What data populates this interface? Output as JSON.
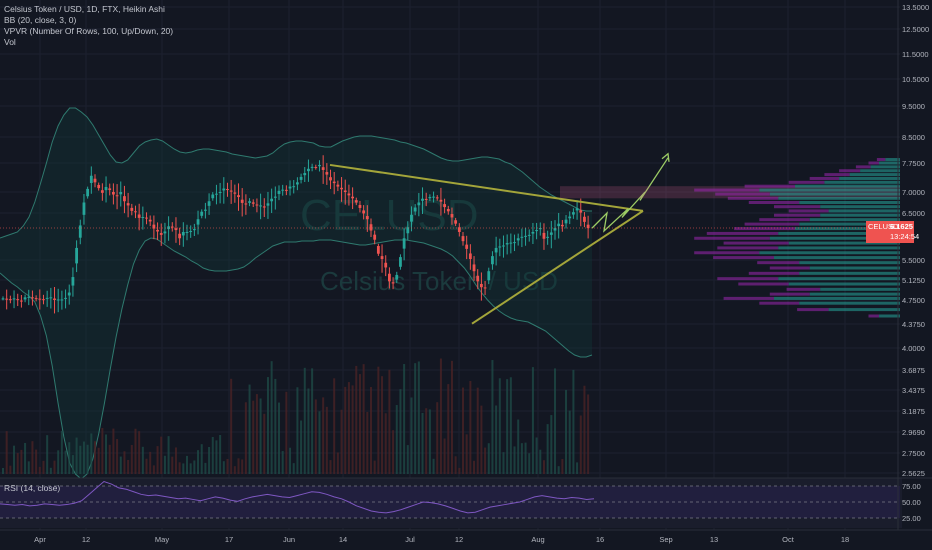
{
  "legend": {
    "symbol_line": "Celsius Token / USD, 1D, FTX, Heikin Ashi",
    "bb": "BB (20, close, 3, 0)",
    "vpvr": "VPVR (Number Of Rows, 100, Up/Down, 20)",
    "vol": "Vol"
  },
  "rsi_label": "RSI (14, close)",
  "watermark": {
    "symbol": "CELUSD",
    "name": "Celsius Token / USD"
  },
  "price_axis": [
    "13.5000",
    "12.5000",
    "11.5000",
    "10.5000",
    "9.5000",
    "8.5000",
    "7.7500",
    "7.0000",
    "6.5000",
    "5.5000",
    "5.1250",
    "4.7500",
    "4.3750",
    "4.0000",
    "3.6875",
    "3.4375",
    "3.1875",
    "2.9690",
    "2.7500",
    "2.5625"
  ],
  "rsi_axis": [
    "75.00",
    "50.00",
    "25.00"
  ],
  "time_axis": [
    "Apr",
    "12",
    "May",
    "17",
    "Jun",
    "14",
    "Jul",
    "12",
    "Aug",
    "16",
    "Sep",
    "13",
    "Oct",
    "18"
  ],
  "current_price": {
    "symbol": "CELUSD",
    "price": "6.1625",
    "countdown": "13:24:54"
  },
  "colors": {
    "up": "#26a69a",
    "down": "#ef5350",
    "background": "#131722",
    "bb": "#2f7a6f",
    "pattern": "#a3a53a",
    "projection": "#9ccc65",
    "rsi": "#7e57c2"
  },
  "chart_data": {
    "type": "candlestick",
    "title": "Celsius Token / USD, 1D, FTX, Heikin Ashi",
    "price_scale": "log",
    "ylim": [
      2.5625,
      13.5
    ],
    "x_range": [
      "Apr",
      "Oct 18"
    ],
    "close": [
      4.78,
      4.77,
      4.76,
      4.78,
      4.75,
      4.73,
      4.8,
      4.81,
      4.79,
      4.78,
      4.77,
      4.76,
      4.79,
      4.8,
      4.75,
      4.76,
      4.76,
      4.79,
      4.89,
      5.18,
      5.75,
      6.22,
      6.75,
      7.08,
      7.42,
      7.25,
      7.1,
      6.98,
      7.13,
      7.05,
      6.94,
      6.9,
      7.0,
      6.78,
      6.68,
      6.55,
      6.53,
      6.39,
      6.41,
      6.38,
      6.31,
      6.15,
      6.09,
      6.02,
      6.09,
      6.2,
      6.19,
      6.12,
      5.95,
      6.08,
      6.08,
      6.1,
      6.14,
      6.36,
      6.53,
      6.58,
      6.78,
      6.94,
      6.96,
      7.0,
      7.09,
      7.06,
      7.01,
      6.96,
      6.88,
      6.74,
      6.71,
      6.78,
      6.72,
      6.68,
      6.68,
      6.63,
      6.73,
      6.84,
      6.89,
      7.03,
      7.06,
      7.05,
      7.14,
      7.15,
      7.25,
      7.39,
      7.49,
      7.6,
      7.65,
      7.64,
      7.7,
      7.57,
      7.45,
      7.3,
      7.23,
      7.14,
      7.07,
      7.0,
      6.92,
      6.85,
      6.75,
      6.62,
      6.49,
      6.36,
      6.11,
      5.92,
      5.63,
      5.52,
      5.36,
      5.1,
      5.06,
      5.22,
      5.56,
      5.95,
      6.18,
      6.46,
      6.63,
      6.75,
      6.84,
      6.83,
      6.88,
      6.89,
      6.85,
      6.77,
      6.64,
      6.54,
      6.4,
      6.26,
      6.08,
      5.89,
      5.73,
      5.52,
      5.29,
      5.1,
      4.99,
      4.98,
      5.29,
      5.58,
      5.75,
      5.78,
      5.8,
      5.85,
      5.86,
      5.87,
      5.95,
      5.98,
      6.0,
      6.02,
      6.08,
      6.12,
      6.16,
      5.94,
      5.98,
      6.07,
      6.16,
      6.26,
      6.2,
      6.35,
      6.42,
      6.52,
      6.61,
      6.51,
      6.3,
      6.16
    ],
    "projection": [
      6.16,
      6.5,
      6.1,
      6.6,
      6.4,
      7.0,
      6.8,
      7.9
    ],
    "pattern_upper": {
      "from": 7.7,
      "to": 6.55
    },
    "pattern_lower": {
      "from": 4.38,
      "to": 6.55
    },
    "vpvr_rows": [
      {
        "price": 4.5,
        "up": 10,
        "down": 5
      },
      {
        "price": 4.6,
        "up": 34,
        "down": 15
      },
      {
        "price": 4.7,
        "up": 48,
        "down": 19
      },
      {
        "price": 4.78,
        "up": 60,
        "down": 24
      },
      {
        "price": 4.86,
        "up": 43,
        "down": 19
      },
      {
        "price": 4.95,
        "up": 38,
        "down": 16
      },
      {
        "price": 5.05,
        "up": 53,
        "down": 24
      },
      {
        "price": 5.15,
        "up": 58,
        "down": 29
      },
      {
        "price": 5.25,
        "up": 48,
        "down": 24
      },
      {
        "price": 5.35,
        "up": 43,
        "down": 19
      },
      {
        "price": 5.45,
        "up": 48,
        "down": 20
      },
      {
        "price": 5.55,
        "up": 60,
        "down": 29
      },
      {
        "price": 5.65,
        "up": 67,
        "down": 31
      },
      {
        "price": 5.75,
        "up": 58,
        "down": 29
      },
      {
        "price": 5.85,
        "up": 53,
        "down": 31
      },
      {
        "price": 5.95,
        "up": 62,
        "down": 36
      },
      {
        "price": 6.05,
        "up": 58,
        "down": 34
      },
      {
        "price": 6.15,
        "up": 50,
        "down": 29
      },
      {
        "price": 6.25,
        "up": 48,
        "down": 26
      },
      {
        "price": 6.35,
        "up": 43,
        "down": 24
      },
      {
        "price": 6.45,
        "up": 38,
        "down": 22
      },
      {
        "price": 6.55,
        "up": 34,
        "down": 19
      },
      {
        "price": 6.65,
        "up": 38,
        "down": 22
      },
      {
        "price": 6.75,
        "up": 48,
        "down": 24
      },
      {
        "price": 6.85,
        "up": 58,
        "down": 24
      },
      {
        "price": 6.95,
        "up": 62,
        "down": 26
      },
      {
        "price": 7.05,
        "up": 67,
        "down": 31
      },
      {
        "price": 7.15,
        "up": 50,
        "down": 24
      },
      {
        "price": 7.25,
        "up": 36,
        "down": 17
      },
      {
        "price": 7.35,
        "up": 29,
        "down": 14
      },
      {
        "price": 7.45,
        "up": 24,
        "down": 12
      },
      {
        "price": 7.55,
        "up": 19,
        "down": 10
      },
      {
        "price": 7.65,
        "up": 14,
        "down": 7
      },
      {
        "price": 7.75,
        "up": 10,
        "down": 5
      },
      {
        "price": 7.85,
        "up": 7,
        "down": 4
      }
    ]
  }
}
